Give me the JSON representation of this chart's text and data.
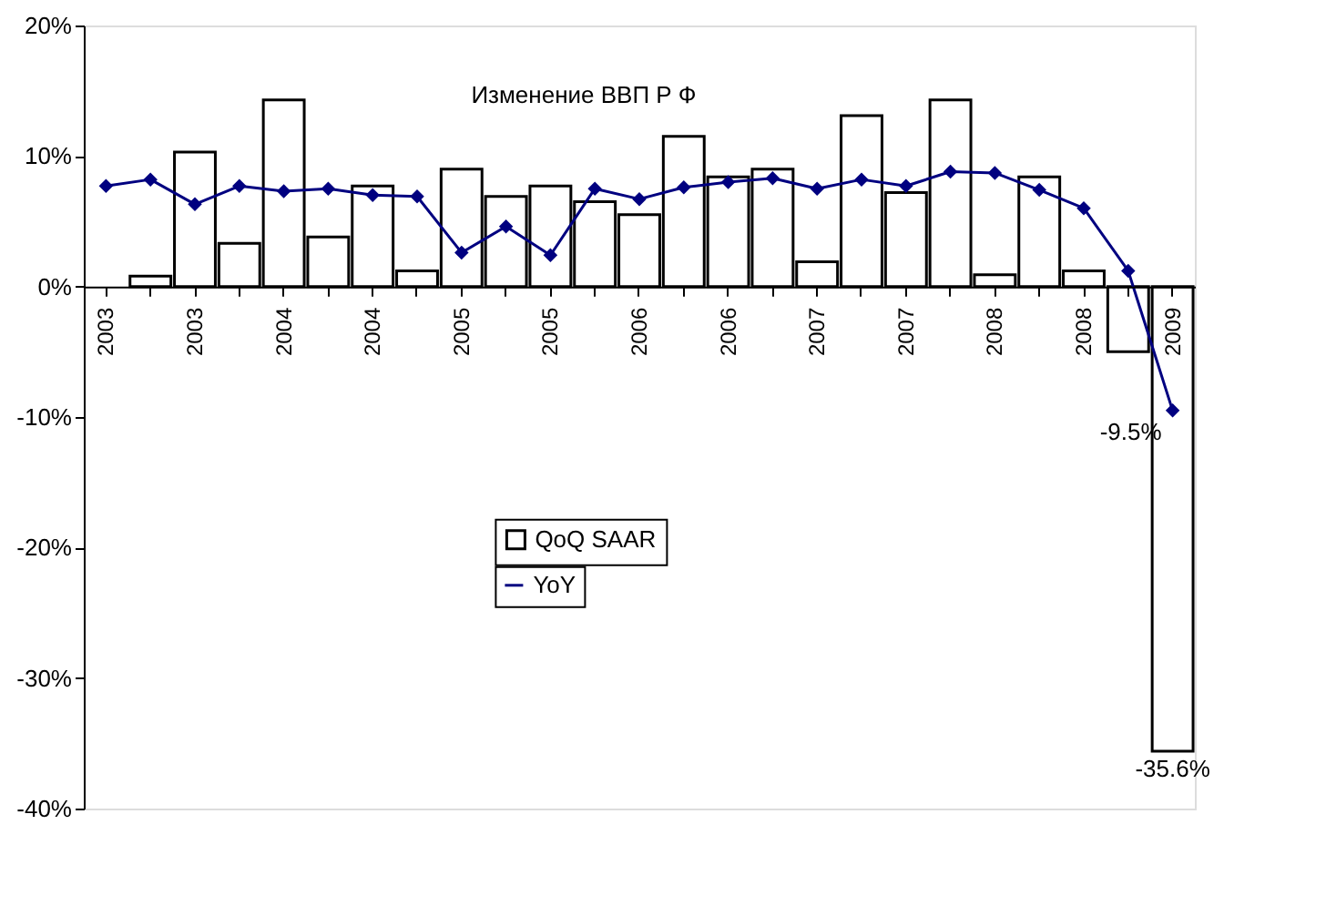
{
  "chart_data": {
    "type": "bar",
    "title": "Изменение ВВП Р Ф",
    "categories": [
      "2003",
      null,
      "2003",
      null,
      "2004",
      null,
      "2004",
      null,
      "2005",
      null,
      "2005",
      null,
      "2006",
      null,
      "2006",
      null,
      "2007",
      null,
      "2007",
      null,
      "2008",
      null,
      "2008",
      null,
      "2009"
    ],
    "series": [
      {
        "name": "QoQ SAAR",
        "color": "#ffffff",
        "values": [
          null,
          0.8,
          10.3,
          3.3,
          14.3,
          3.8,
          7.7,
          1.2,
          9.0,
          6.9,
          7.7,
          6.5,
          5.5,
          11.5,
          8.4,
          9.0,
          1.9,
          13.1,
          7.2,
          14.3,
          0.9,
          8.4,
          1.2,
          -5.0,
          -35.6
        ],
        "value_labels": [
          null,
          null,
          null,
          null,
          null,
          null,
          null,
          null,
          null,
          null,
          null,
          null,
          null,
          null,
          null,
          null,
          null,
          null,
          null,
          null,
          null,
          null,
          null,
          null,
          "-35.6%"
        ]
      },
      {
        "name": "YoY",
        "type": "line",
        "color": "#000080",
        "marker": "diamond",
        "values": [
          7.7,
          8.2,
          6.3,
          7.7,
          7.3,
          7.5,
          7.0,
          6.9,
          2.6,
          4.6,
          2.4,
          7.5,
          6.7,
          7.6,
          8.0,
          8.3,
          7.5,
          8.2,
          7.7,
          8.8,
          8.7,
          7.4,
          6.0,
          1.2,
          -9.5
        ],
        "value_labels": [
          null,
          null,
          null,
          null,
          null,
          null,
          null,
          null,
          null,
          null,
          null,
          null,
          null,
          null,
          null,
          null,
          null,
          null,
          null,
          null,
          null,
          null,
          null,
          null,
          "-9.5%"
        ]
      }
    ],
    "ylim": [
      -40,
      20
    ],
    "yticks": [
      {
        "value": -40,
        "label": "-40%"
      },
      {
        "value": -30,
        "label": "-30%"
      },
      {
        "value": -20,
        "label": "-20%"
      },
      {
        "value": -10,
        "label": "-10%"
      },
      {
        "value": 0,
        "label": "0%"
      },
      {
        "value": 10,
        "label": "10%"
      },
      {
        "value": 20,
        "label": "20%"
      }
    ],
    "grid": false,
    "legend": "bottom"
  }
}
